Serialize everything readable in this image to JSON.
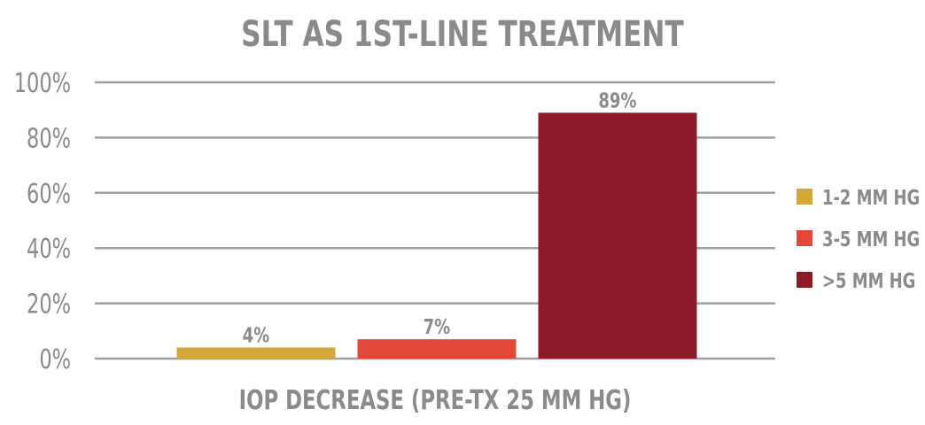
{
  "chart_data": {
    "type": "bar",
    "title": "SLT AS 1ST-LINE TREATMENT",
    "xlabel": "IOP DECREASE (PRE-TX 25 MM HG)",
    "ylabel": "",
    "ylim": [
      0,
      100
    ],
    "yticks": [
      "0%",
      "20%",
      "40%",
      "60%",
      "80%",
      "100%"
    ],
    "grid": true,
    "legend_position": "right",
    "series": [
      {
        "name": "1-2 MM HG",
        "value": 4,
        "label": "4%",
        "color": "#d4a838"
      },
      {
        "name": "3-5 MM HG",
        "value": 7,
        "label": "7%",
        "color": "#e2483a"
      },
      {
        "name": ">5 MM HG",
        "value": 89,
        "label": "89%",
        "color": "#8c1a27"
      }
    ]
  }
}
